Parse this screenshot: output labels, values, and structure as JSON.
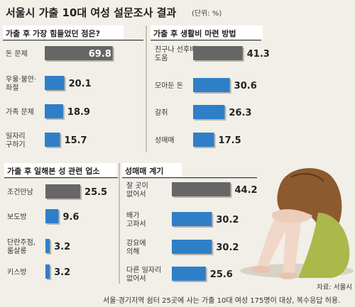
{
  "title": "서울시 가출 10대 여성 설문조사 결과",
  "unit_note": "(단위: %)",
  "source": "자료: 서울시",
  "footnote": "서울·경기지역 쉼터 25곳에 사는 가출 10대 여성 175명이 대상, 복수응답 허용.",
  "colors": {
    "gray_bar": "#666666",
    "blue_bar": "#2e7fc8",
    "header_bg": "#ffffff",
    "panel_bg": "#ffffff",
    "page_bg": "#f1efe8"
  },
  "chart_data": [
    {
      "type": "bar",
      "title": "가출 후 가장 힘들었던 점은?",
      "categories": [
        "돈 문제",
        "우울·불안· 좌절",
        "가족 문제",
        "일자리 구하기"
      ],
      "values": [
        69.8,
        20.1,
        18.9,
        15.7
      ],
      "xlim": [
        0,
        70
      ]
    },
    {
      "type": "bar",
      "title": "가출 후 생활비 마련 방법",
      "categories": [
        "친구나 선후배 도움",
        "모아둔 돈",
        "갈취",
        "성매매"
      ],
      "values": [
        41.3,
        30.6,
        26.3,
        17.5
      ],
      "xlim": [
        0,
        45
      ]
    },
    {
      "type": "bar",
      "title": "가출 후 일해본 성 관련 업소",
      "categories": [
        "조건만남",
        "보도방",
        "단란주점, 룸살롱",
        "키스방"
      ],
      "values": [
        25.5,
        9.6,
        3.2,
        3.2
      ],
      "xlim": [
        0,
        26
      ]
    },
    {
      "type": "bar",
      "title": "성매매 계기",
      "categories": [
        "잘 곳이 없어서",
        "배가 고파서",
        "강요에 의해",
        "다른 일자리 없어서"
      ],
      "values": [
        44.2,
        30.2,
        30.2,
        25.6
      ],
      "xlim": [
        0,
        45
      ]
    }
  ]
}
